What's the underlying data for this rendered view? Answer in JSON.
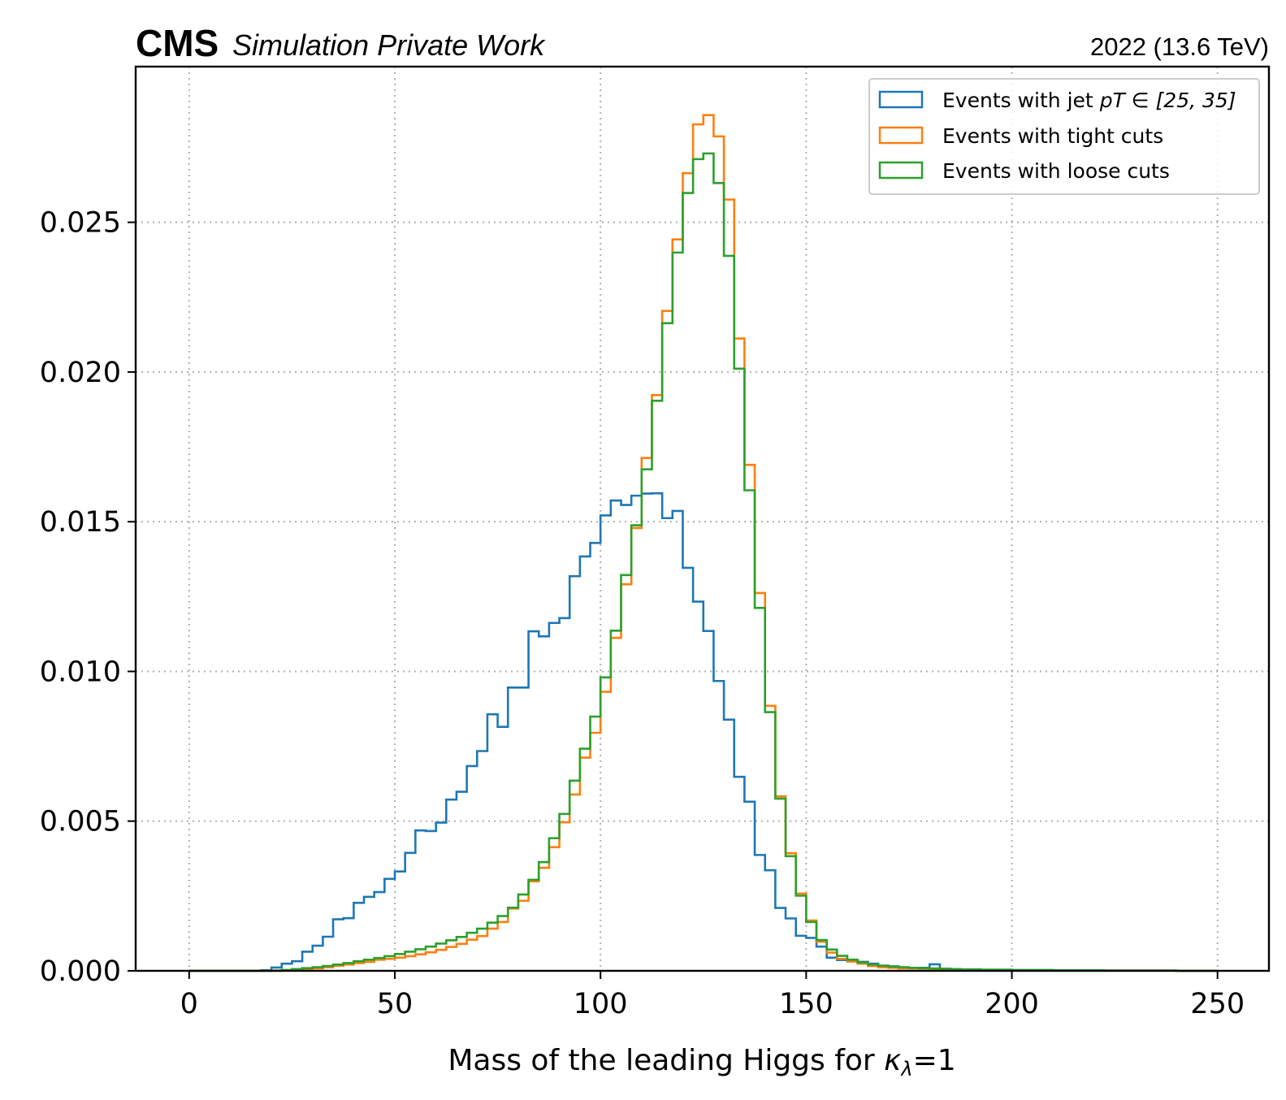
{
  "header": {
    "cms_label": "CMS",
    "extra_label": "Simulation Private Work",
    "lumi_label": "2022 (13.6 TeV)"
  },
  "chart_data": {
    "type": "step-histogram",
    "xlabel_prefix": "Mass of the leading Higgs for ",
    "xlabel_symbol": "κ",
    "xlabel_sub": "λ",
    "xlabel_suffix": "=1",
    "ylabel": "",
    "xlim": [
      -13,
      262.5
    ],
    "ylim": [
      0,
      0.0302
    ],
    "xticks": [
      0,
      50,
      100,
      150,
      200,
      250
    ],
    "xtick_labels": [
      "0",
      "50",
      "100",
      "150",
      "200",
      "250"
    ],
    "yticks": [
      0,
      0.005,
      0.01,
      0.015,
      0.02,
      0.025
    ],
    "ytick_labels": [
      "0.000",
      "0.005",
      "0.010",
      "0.015",
      "0.020",
      "0.025"
    ],
    "grid": true,
    "legend_position": "top-right",
    "bins": {
      "start": 0,
      "width": 2.5,
      "count": 100
    },
    "series": [
      {
        "name": "Events with jet",
        "name_math": "pT ∈ [25, 35]",
        "color": "#1f77b4",
        "values": [
          0,
          0,
          0,
          0,
          0,
          0,
          0,
          2e-05,
          0.00011,
          0.00024,
          0.00032,
          0.00064,
          0.00084,
          0.00114,
          0.00172,
          0.00176,
          0.00227,
          0.00247,
          0.00263,
          0.00307,
          0.00332,
          0.00394,
          0.00469,
          0.00467,
          0.00495,
          0.00572,
          0.00598,
          0.00684,
          0.00734,
          0.00857,
          0.00815,
          0.00946,
          0.00946,
          0.01134,
          0.01117,
          0.01162,
          0.01178,
          0.01318,
          0.01384,
          0.01429,
          0.01521,
          0.01571,
          0.01556,
          0.01587,
          0.01594,
          0.01595,
          0.01512,
          0.01536,
          0.01346,
          0.01233,
          0.01135,
          0.00968,
          0.00839,
          0.00648,
          0.00565,
          0.00387,
          0.00336,
          0.0021,
          0.00175,
          0.00117,
          0.0011,
          0.00081,
          0.00044,
          0.00036,
          0.00033,
          0.0003,
          0.00024,
          0.00017,
          0.00015,
          0.0001,
          0.0001,
          0.0001,
          0.00022,
          7e-05,
          4e-05,
          4e-05,
          4e-05,
          3e-05,
          2e-05,
          2e-05,
          2e-05,
          2e-05,
          1e-05,
          2e-05,
          1e-05,
          1e-05,
          1e-05,
          1e-05,
          1e-05,
          1e-05,
          1e-05,
          1e-05,
          1e-05,
          1e-05,
          1e-05,
          1e-05,
          0,
          0,
          0,
          0
        ]
      },
      {
        "name": "Events with tight cuts",
        "color": "#ff7f0e",
        "values": [
          0,
          0,
          0,
          0,
          0,
          0,
          0,
          0,
          0,
          1e-05,
          3e-05,
          5e-05,
          8e-05,
          0.00012,
          0.00017,
          0.00021,
          0.00026,
          0.0003,
          0.00037,
          0.0004,
          0.00044,
          0.00049,
          0.00055,
          0.00062,
          0.0007,
          0.0008,
          0.0009,
          0.00104,
          0.00116,
          0.00141,
          0.00163,
          0.00208,
          0.00234,
          0.00299,
          0.00344,
          0.00413,
          0.00496,
          0.00589,
          0.00712,
          0.00795,
          0.00932,
          0.01112,
          0.01291,
          0.01479,
          0.01713,
          0.01923,
          0.02204,
          0.02443,
          0.02664,
          0.02827,
          0.02858,
          0.02787,
          0.02576,
          0.02112,
          0.0169,
          0.01262,
          0.00885,
          0.00583,
          0.00393,
          0.00258,
          0.00168,
          0.00097,
          0.00061,
          0.0004,
          0.00031,
          0.00024,
          0.00016,
          0.00012,
          0.0001,
          8e-05,
          8e-05,
          7e-05,
          6e-05,
          5e-05,
          5e-05,
          4e-05,
          4e-05,
          3e-05,
          3e-05,
          3e-05,
          2e-05,
          2e-05,
          2e-05,
          2e-05,
          2e-05,
          2e-05,
          1e-05,
          1e-05,
          1e-05,
          1e-05,
          1e-05,
          1e-05,
          1e-05,
          1e-05,
          1e-05,
          1e-05,
          0,
          0,
          0,
          0
        ]
      },
      {
        "name": "Events with loose cuts",
        "color": "#2ca02c",
        "values": [
          0,
          0,
          0,
          0,
          0,
          0,
          0,
          0,
          1e-05,
          3e-05,
          6e-05,
          9e-05,
          0.00012,
          0.00016,
          0.00021,
          0.00026,
          0.00032,
          0.00037,
          0.00043,
          0.00049,
          0.00056,
          0.00064,
          0.00072,
          0.00081,
          0.00091,
          0.00102,
          0.00113,
          0.00127,
          0.00141,
          0.00161,
          0.00183,
          0.00211,
          0.00255,
          0.00304,
          0.00363,
          0.00443,
          0.00524,
          0.00635,
          0.00742,
          0.00849,
          0.0098,
          0.01136,
          0.01322,
          0.01488,
          0.01675,
          0.01904,
          0.02163,
          0.02399,
          0.02598,
          0.02711,
          0.0273,
          0.02631,
          0.02388,
          0.02011,
          0.01605,
          0.01212,
          0.00864,
          0.00575,
          0.00383,
          0.00251,
          0.00163,
          0.00103,
          0.00071,
          0.0005,
          0.00037,
          0.00028,
          0.00021,
          0.00017,
          0.00014,
          0.00012,
          0.0001,
          9e-05,
          8e-05,
          7e-05,
          6e-05,
          5e-05,
          5e-05,
          4e-05,
          4e-05,
          4e-05,
          3e-05,
          3e-05,
          3e-05,
          3e-05,
          2e-05,
          2e-05,
          2e-05,
          2e-05,
          2e-05,
          1e-05,
          1e-05,
          1e-05,
          1e-05,
          1e-05,
          1e-05,
          1e-05,
          0,
          0,
          0,
          0
        ]
      }
    ]
  }
}
